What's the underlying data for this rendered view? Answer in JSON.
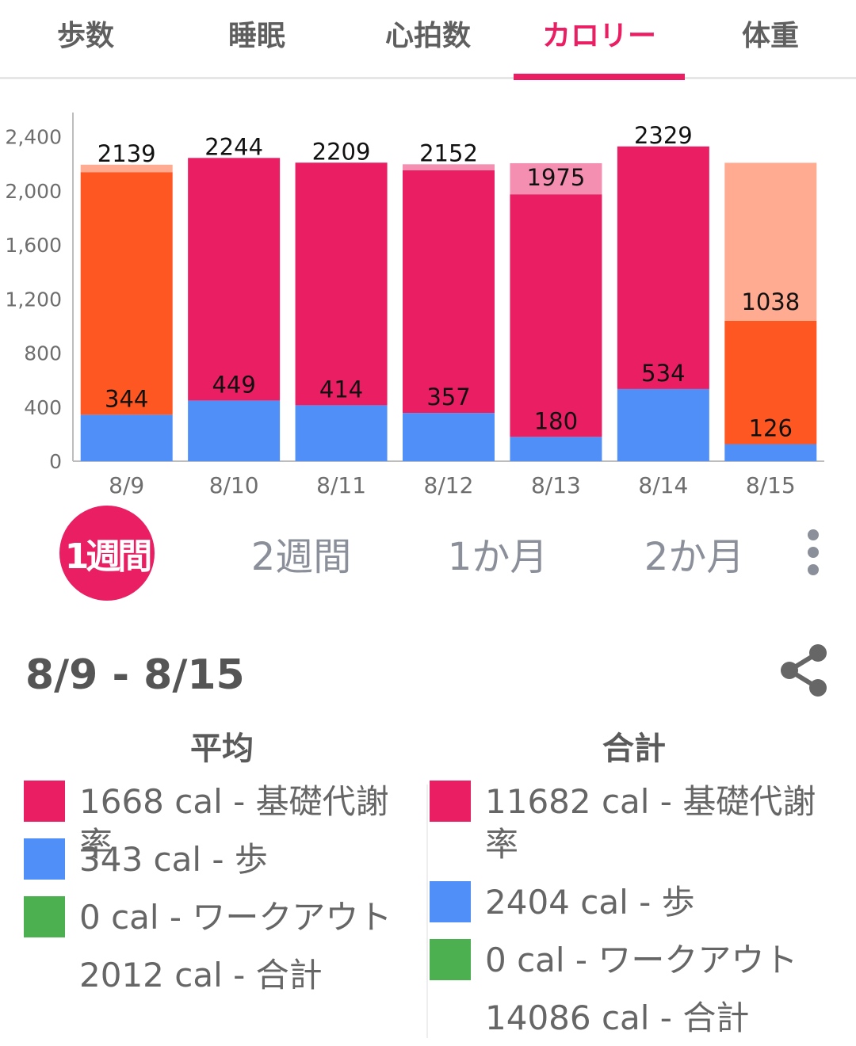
{
  "tabs": [
    {
      "label": "歩数"
    },
    {
      "label": "睡眠"
    },
    {
      "label": "心拍数"
    },
    {
      "label": "カロリー",
      "active": true
    },
    {
      "label": "体重"
    }
  ],
  "colors": {
    "accent": "#e91e63",
    "bmr": "#e91e63",
    "bmr_projected": "#f48fb1",
    "steps": "#4f8ff7",
    "workout": "#4caf50",
    "partial": "#ff5722",
    "partial_projected": "#ffab91"
  },
  "chart_data": {
    "type": "bar",
    "stacked": true,
    "categories": [
      "8/9",
      "8/10",
      "8/11",
      "8/12",
      "8/13",
      "8/14",
      "8/15"
    ],
    "series": [
      {
        "values": [
          344,
          449,
          414,
          357,
          180,
          534,
          126
        ]
      },
      {
        "values": [
          1795,
          1795,
          1795,
          1795,
          1795,
          1795,
          912
        ]
      },
      {
        "values": [
          55,
          0,
          0,
          45,
          230,
          0,
          1170
        ]
      }
    ],
    "bar_colors": [
      [
        "#4f8ff7",
        "#ff5722",
        "#ffab91"
      ],
      [
        "#4f8ff7",
        "#e91e63",
        "#f48fb1"
      ],
      [
        "#4f8ff7",
        "#e91e63",
        "#f48fb1"
      ],
      [
        "#4f8ff7",
        "#e91e63",
        "#f48fb1"
      ],
      [
        "#4f8ff7",
        "#e91e63",
        "#f48fb1"
      ],
      [
        "#4f8ff7",
        "#e91e63",
        "#f48fb1"
      ],
      [
        "#4f8ff7",
        "#ff5722",
        "#ffab91"
      ]
    ],
    "top_labels": [
      "2139",
      "2244",
      "2209",
      "2152",
      "1975",
      "2329",
      "1038"
    ],
    "bottom_labels": [
      "344",
      "449",
      "414",
      "357",
      "180",
      "534",
      "126"
    ],
    "yticks": [
      0,
      400,
      800,
      1200,
      1600,
      2000,
      2400
    ],
    "ytick_labels": [
      "0",
      "400",
      "800",
      "1,200",
      "1,600",
      "2,000",
      "2,400"
    ],
    "ylim": [
      0,
      2580
    ],
    "grid": false,
    "legend": "none"
  },
  "periods": [
    {
      "label": "1週間",
      "active": true
    },
    {
      "label": "2週間"
    },
    {
      "label": "1か月"
    },
    {
      "label": "2か月"
    }
  ],
  "more_icon": "more-vert-icon",
  "summary": {
    "range": "8/9 - 8/15",
    "share_icon": "share-icon",
    "average": {
      "title": "平均",
      "items": [
        {
          "text": "1668 cal - 基礎代謝率",
          "color": "#e91e63"
        },
        {
          "text": "343 cal - 歩",
          "color": "#4f8ff7"
        },
        {
          "text": "0 cal - ワークアウト",
          "color": "#4caf50"
        },
        {
          "text": "2012 cal - 合計"
        }
      ]
    },
    "total": {
      "title": "合計",
      "items": [
        {
          "text": "11682 cal - 基礎代謝率",
          "color": "#e91e63"
        },
        {
          "text": "2404 cal - 歩",
          "color": "#4f8ff7"
        },
        {
          "text": "0 cal - ワークアウト",
          "color": "#4caf50"
        },
        {
          "text": "14086 cal - 合計"
        }
      ]
    }
  }
}
